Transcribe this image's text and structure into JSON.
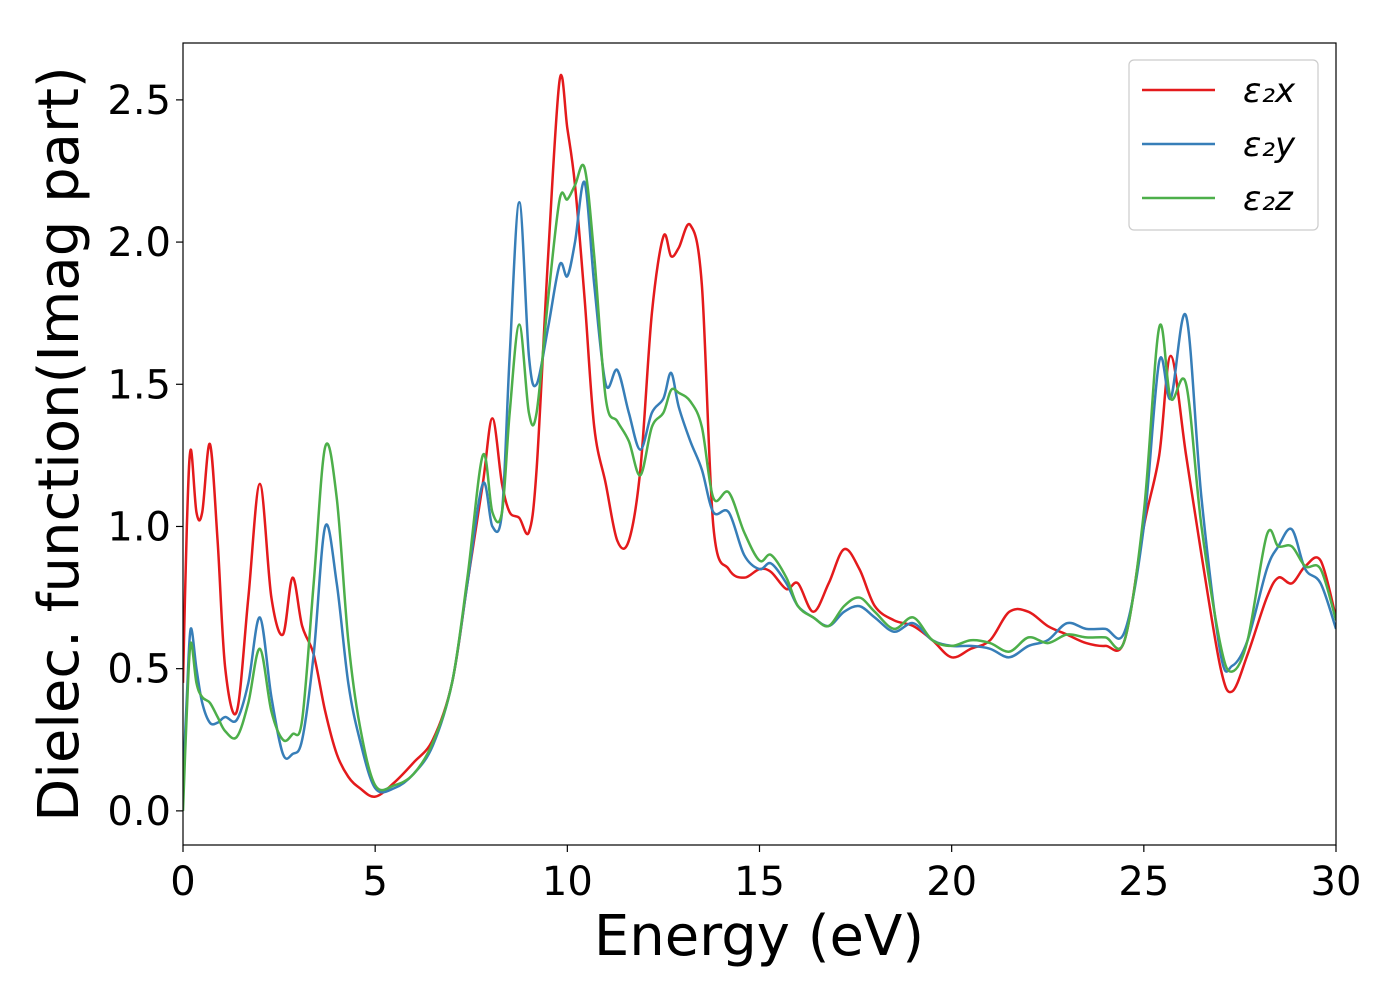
{
  "chart_data": {
    "type": "line",
    "xlabel": "Energy (eV)",
    "ylabel": "Dielec. function(Imag part)",
    "x": [
      0,
      0.1,
      0.2,
      0.35,
      0.5,
      0.7,
      0.9,
      1.1,
      1.4,
      1.7,
      2.0,
      2.3,
      2.6,
      2.85,
      3.1,
      3.4,
      3.7,
      4.0,
      4.3,
      4.6,
      5.0,
      5.5,
      6.0,
      6.5,
      7.0,
      7.4,
      7.8,
      8.05,
      8.3,
      8.5,
      8.75,
      9.0,
      9.2,
      9.5,
      9.8,
      10.0,
      10.2,
      10.45,
      10.7,
      11.0,
      11.3,
      11.6,
      11.9,
      12.2,
      12.5,
      12.7,
      12.9,
      13.2,
      13.5,
      13.8,
      14.2,
      14.6,
      15.0,
      15.3,
      15.7,
      16.0,
      16.4,
      16.8,
      17.2,
      17.6,
      18.0,
      18.5,
      19.0,
      19.5,
      20.0,
      20.5,
      21.0,
      21.5,
      22.0,
      22.5,
      23.0,
      23.5,
      24.0,
      24.5,
      25.0,
      25.4,
      25.7,
      26.1,
      26.5,
      27.0,
      27.3,
      27.7,
      28.2,
      28.5,
      28.85,
      29.2,
      29.6,
      30
    ],
    "series": [
      {
        "name": "ε₂x",
        "color": "#e41a1c",
        "values": [
          0.45,
          1.0,
          1.27,
          1.05,
          1.05,
          1.29,
          0.95,
          0.5,
          0.35,
          0.75,
          1.15,
          0.75,
          0.62,
          0.82,
          0.65,
          0.55,
          0.35,
          0.2,
          0.12,
          0.08,
          0.05,
          0.1,
          0.17,
          0.25,
          0.45,
          0.8,
          1.15,
          1.38,
          1.15,
          1.05,
          1.03,
          0.98,
          1.2,
          1.95,
          2.57,
          2.4,
          2.2,
          1.8,
          1.35,
          1.15,
          0.95,
          0.95,
          1.2,
          1.75,
          2.02,
          1.95,
          1.98,
          2.06,
          1.85,
          1.0,
          0.85,
          0.82,
          0.85,
          0.84,
          0.78,
          0.8,
          0.7,
          0.8,
          0.92,
          0.85,
          0.72,
          0.67,
          0.65,
          0.6,
          0.54,
          0.57,
          0.6,
          0.7,
          0.7,
          0.65,
          0.62,
          0.59,
          0.58,
          0.6,
          1.0,
          1.25,
          1.6,
          1.25,
          0.9,
          0.5,
          0.42,
          0.55,
          0.75,
          0.82,
          0.8,
          0.86,
          0.88,
          0.68
        ]
      },
      {
        "name": "ε₂y",
        "color": "#377eb8",
        "values": [
          0.1,
          0.4,
          0.64,
          0.5,
          0.38,
          0.31,
          0.31,
          0.33,
          0.32,
          0.45,
          0.68,
          0.4,
          0.2,
          0.2,
          0.25,
          0.55,
          1.0,
          0.8,
          0.45,
          0.25,
          0.08,
          0.08,
          0.13,
          0.23,
          0.45,
          0.8,
          1.15,
          1.0,
          1.05,
          1.6,
          2.14,
          1.6,
          1.5,
          1.7,
          1.92,
          1.88,
          2.0,
          2.21,
          1.85,
          1.5,
          1.55,
          1.4,
          1.27,
          1.4,
          1.45,
          1.54,
          1.42,
          1.3,
          1.2,
          1.05,
          1.05,
          0.9,
          0.85,
          0.87,
          0.8,
          0.72,
          0.68,
          0.65,
          0.7,
          0.72,
          0.68,
          0.63,
          0.66,
          0.6,
          0.58,
          0.58,
          0.57,
          0.54,
          0.58,
          0.6,
          0.66,
          0.64,
          0.64,
          0.63,
          1.0,
          1.58,
          1.45,
          1.74,
          1.1,
          0.55,
          0.51,
          0.6,
          0.85,
          0.93,
          0.99,
          0.85,
          0.8,
          0.64
        ]
      },
      {
        "name": "ε₂z",
        "color": "#4daf4a",
        "values": [
          0.0,
          0.35,
          0.59,
          0.45,
          0.4,
          0.38,
          0.33,
          0.28,
          0.26,
          0.38,
          0.57,
          0.35,
          0.25,
          0.27,
          0.32,
          0.8,
          1.28,
          1.1,
          0.6,
          0.3,
          0.09,
          0.09,
          0.13,
          0.24,
          0.45,
          0.82,
          1.25,
          1.05,
          1.05,
          1.4,
          1.71,
          1.4,
          1.4,
          1.8,
          2.15,
          2.15,
          2.2,
          2.26,
          1.95,
          1.45,
          1.37,
          1.3,
          1.18,
          1.35,
          1.4,
          1.48,
          1.47,
          1.44,
          1.35,
          1.1,
          1.12,
          0.98,
          0.88,
          0.9,
          0.82,
          0.72,
          0.68,
          0.65,
          0.72,
          0.75,
          0.7,
          0.64,
          0.68,
          0.6,
          0.58,
          0.6,
          0.59,
          0.56,
          0.61,
          0.59,
          0.62,
          0.61,
          0.61,
          0.6,
          1.05,
          1.7,
          1.45,
          1.5,
          1.0,
          0.58,
          0.49,
          0.6,
          0.97,
          0.93,
          0.93,
          0.86,
          0.85,
          0.67
        ]
      }
    ],
    "xlim": [
      0,
      30
    ],
    "xticks": [
      0,
      5,
      10,
      15,
      20,
      25,
      30
    ],
    "ylim": [
      -0.12,
      2.7
    ],
    "yticks": [
      {
        "value": 0,
        "label": "0.0"
      },
      0.5,
      {
        "value": 1,
        "label": "1.0"
      },
      1.5,
      {
        "value": 2,
        "label": "2.0"
      },
      2.5
    ],
    "legend": "upper right",
    "grid": false
  }
}
